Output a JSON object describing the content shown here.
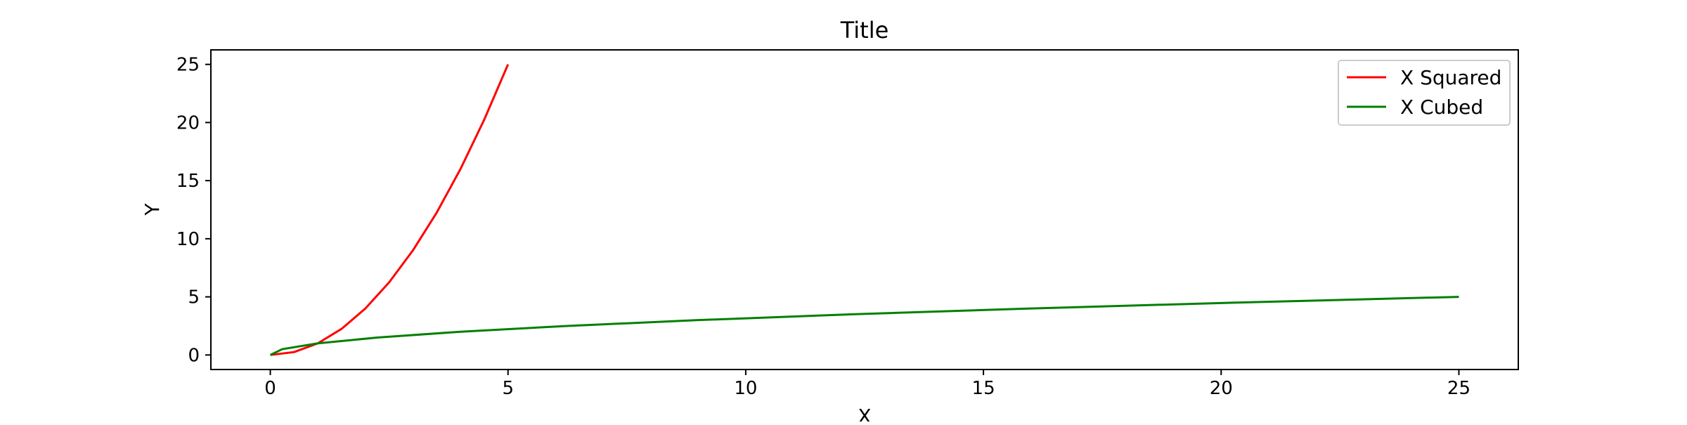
{
  "chart_data": {
    "type": "line",
    "title": "Title",
    "xlabel": "X",
    "ylabel": "Y",
    "xlim": [
      -1.25,
      26.25
    ],
    "ylim": [
      -1.25,
      26.25
    ],
    "xticks": [
      0,
      5,
      10,
      15,
      20,
      25
    ],
    "yticks": [
      0,
      5,
      10,
      15,
      20,
      25
    ],
    "grid": false,
    "legend_position": "top-right",
    "series": [
      {
        "name": "X Squared",
        "color": "#ff0000",
        "x": [
          0,
          0.5,
          1,
          1.5,
          2,
          2.5,
          3,
          3.5,
          4,
          4.5,
          5
        ],
        "y": [
          0,
          0.25,
          1,
          2.25,
          4,
          6.25,
          9,
          12.25,
          16,
          20.25,
          25
        ]
      },
      {
        "name": "X Cubed",
        "color": "#008000",
        "x": [
          0,
          0.25,
          1,
          2.25,
          4,
          6.25,
          9,
          12.25,
          16,
          20.25,
          25
        ],
        "y": [
          0,
          0.5,
          1,
          1.5,
          2,
          2.5,
          3,
          3.5,
          4,
          4.5,
          5
        ]
      }
    ]
  }
}
